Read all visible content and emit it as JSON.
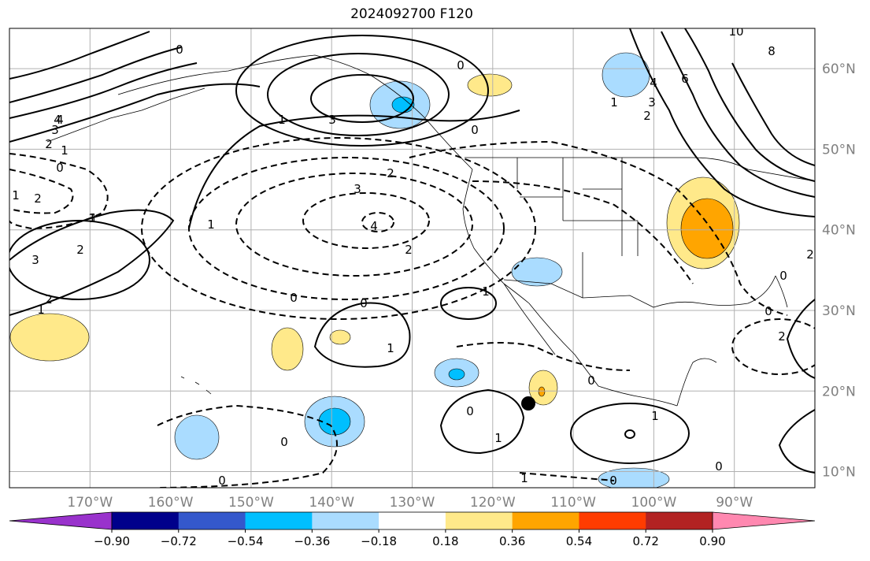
{
  "title": "2024092700 F120",
  "map": {
    "projection": "plate carree",
    "lon_range": [
      -180,
      -80
    ],
    "lat_range": [
      8,
      65
    ],
    "grid": true,
    "lon_ticks": [
      "170°W",
      "160°W",
      "150°W",
      "140°W",
      "130°W",
      "120°W",
      "110°W",
      "100°W",
      "90°W"
    ],
    "lat_ticks": [
      "10°N",
      "20°N",
      "30°N",
      "40°N",
      "50°N",
      "60°N"
    ],
    "marker": {
      "type": "black dot",
      "lon": -116,
      "lat": 18.3
    }
  },
  "colorbar": {
    "tick_labels": [
      "−0.90",
      "−0.72",
      "−0.54",
      "−0.36",
      "−0.18",
      "0.18",
      "0.36",
      "0.54",
      "0.72",
      "0.90"
    ],
    "colors": [
      "#9932cc",
      "#00008b",
      "#3458cc",
      "#00bfff",
      "#aadcff",
      "#ffffff",
      "#ffe98a",
      "#ffa500",
      "#ff3c00",
      "#b22222",
      "#ff88b0"
    ],
    "extend": "both"
  },
  "contour_labels": [
    {
      "text": "0"
    },
    {
      "text": "0"
    },
    {
      "text": "1"
    },
    {
      "text": "3"
    },
    {
      "text": "4"
    },
    {
      "text": "0"
    },
    {
      "text": "10"
    },
    {
      "text": "8"
    },
    {
      "text": "6"
    },
    {
      "text": "4"
    },
    {
      "text": "3"
    },
    {
      "text": "1"
    },
    {
      "text": "2"
    },
    {
      "text": "4"
    },
    {
      "text": "3"
    },
    {
      "text": "2"
    },
    {
      "text": "1"
    },
    {
      "text": "0"
    },
    {
      "text": "2"
    },
    {
      "text": "2"
    },
    {
      "text": "1"
    },
    {
      "text": "1"
    },
    {
      "text": "2"
    },
    {
      "text": "3"
    },
    {
      "text": "4"
    },
    {
      "text": "2"
    },
    {
      "text": "3"
    },
    {
      "text": "2"
    },
    {
      "text": "1"
    },
    {
      "text": "0"
    },
    {
      "text": "0"
    },
    {
      "text": "1"
    },
    {
      "text": "1"
    },
    {
      "text": "0"
    },
    {
      "text": "1"
    },
    {
      "text": "0"
    },
    {
      "text": "0"
    },
    {
      "text": "1"
    },
    {
      "text": "1"
    },
    {
      "text": "0"
    },
    {
      "text": "0"
    },
    {
      "text": "0"
    },
    {
      "text": "2"
    },
    {
      "text": "0"
    },
    {
      "text": "1"
    },
    {
      "text": "0"
    },
    {
      "text": "1"
    },
    {
      "text": "2"
    }
  ],
  "shaded_anomalies": [
    {
      "region": "gulf of alaska",
      "level": "-0.36"
    },
    {
      "region": "western canada",
      "level": "-0.18"
    },
    {
      "region": "pacific northwest coast",
      "level": "0.18"
    },
    {
      "region": "central us",
      "level": "0.36"
    },
    {
      "region": "southwest us",
      "level": "-0.18"
    },
    {
      "region": "eastern pacific 1",
      "level": "-0.36"
    },
    {
      "region": "eastern pacific 2",
      "level": "-0.36"
    },
    {
      "region": "central pacific",
      "level": "-0.18"
    },
    {
      "region": "mexico west coast",
      "level": "0.36"
    },
    {
      "region": "subtropical pacific",
      "level": "0.18"
    },
    {
      "region": "central america",
      "level": "-0.18"
    }
  ]
}
